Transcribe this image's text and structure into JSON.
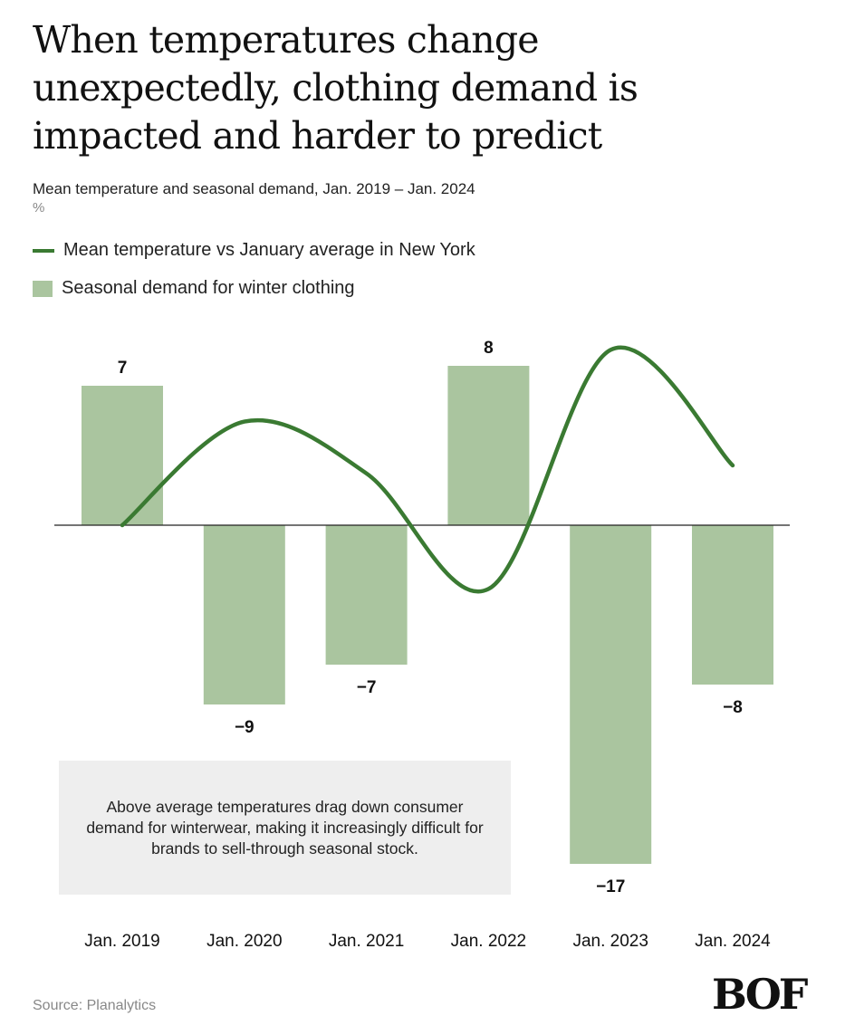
{
  "title": "When temperatures change unexpectedly, clothing demand is impacted and harder to predict",
  "subtitle": "Mean temperature and seasonal demand, Jan. 2019 – Jan. 2024",
  "unit": "%",
  "legend": {
    "line_label": "Mean temperature vs January average in New York",
    "bar_label": "Seasonal demand for winter clothing"
  },
  "annotation": "Above average temperatures drag down consumer demand for winterwear, making it increasingly difficult for brands to sell-through seasonal stock.",
  "source": "Source: Planalytics",
  "logo": "BOF",
  "colors": {
    "bar": "#aac59f",
    "line": "#3a7a32",
    "zero_line": "#222222"
  },
  "chart_data": {
    "type": "bar",
    "categories": [
      "Jan. 2019",
      "Jan. 2020",
      "Jan. 2021",
      "Jan. 2022",
      "Jan. 2023",
      "Jan. 2024"
    ],
    "series": [
      {
        "name": "Seasonal demand for winter clothing",
        "type": "bar",
        "values": [
          7,
          -9,
          -7,
          8,
          -17,
          -8
        ],
        "labels": [
          "7",
          "−9",
          "−7",
          "8",
          "−17",
          "−8"
        ]
      },
      {
        "name": "Mean temperature vs January average in New York",
        "type": "line",
        "smooth": true,
        "values": [
          0,
          5.2,
          2.6,
          -3.2,
          8.8,
          3.0
        ]
      }
    ],
    "ylim": [
      -17,
      8
    ],
    "zero_line": true,
    "grid": false,
    "legend_position": "top-left"
  }
}
